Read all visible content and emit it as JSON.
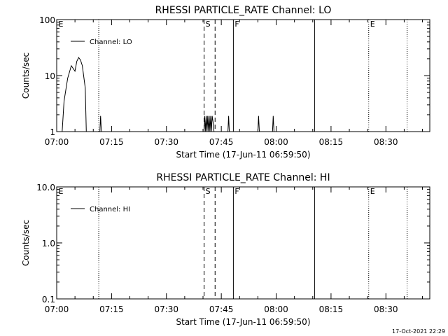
{
  "footer_timestamp": "17-Oct-2021 22:29",
  "chart_data": [
    {
      "type": "line",
      "title": "RHESSI PARTICLE_RATE Channel: LO",
      "xlabel": "Start Time (17-Jun-11 06:59:50)",
      "ylabel": "Counts/sec",
      "yscale": "log",
      "ylim": [
        1,
        100
      ],
      "ytick_values": [
        1,
        10,
        100
      ],
      "ytick_labels": [
        "1",
        "10",
        "100"
      ],
      "xlim_minutes": [
        0,
        102
      ],
      "xtick_minutes": [
        0,
        15,
        30,
        45,
        60,
        75,
        90
      ],
      "xtick_labels": [
        "07:00",
        "07:15",
        "07:30",
        "07:45",
        "08:00",
        "08:15",
        "08:30"
      ],
      "legend": {
        "label": "Channel: LO",
        "position": "top-left"
      },
      "series": [
        {
          "name": "Channel: LO",
          "x_minutes": [
            1.5,
            2.0,
            3.0,
            4.0,
            5.0,
            5.5,
            6.0,
            6.5,
            7.0,
            7.8,
            8.1,
            11.8,
            12.0,
            12.2,
            40.3,
            40.5,
            40.7,
            40.9,
            41.1,
            41.3,
            41.5,
            41.7,
            41.9,
            42.1,
            42.3,
            42.5,
            42.8,
            43.0,
            43.2,
            46.8,
            47.0,
            47.2,
            55.0,
            55.2,
            55.4,
            59.0,
            59.2,
            59.4
          ],
          "values": [
            1,
            3.5,
            9,
            15,
            12,
            18,
            21,
            19,
            15,
            6,
            1,
            1,
            1.9,
            1,
            1,
            1.9,
            1,
            1.9,
            1,
            1.9,
            1,
            1.9,
            1,
            1.9,
            1,
            1.9,
            1.4,
            1,
            1,
            1,
            1.9,
            1,
            1,
            1.9,
            1,
            1,
            1.9,
            1
          ]
        }
      ],
      "markers": [
        {
          "x_minutes": 0.1,
          "style": "none",
          "label": "E"
        },
        {
          "x_minutes": 11.5,
          "style": "dotted",
          "label": ""
        },
        {
          "x_minutes": 40.3,
          "style": "dashed",
          "label": "S"
        },
        {
          "x_minutes": 43.3,
          "style": "dashed",
          "label": ""
        },
        {
          "x_minutes": 48.3,
          "style": "solid",
          "label": "F"
        },
        {
          "x_minutes": 70.5,
          "style": "solid",
          "label": ""
        },
        {
          "x_minutes": 85.3,
          "style": "dotted",
          "label": "E"
        },
        {
          "x_minutes": 95.8,
          "style": "dotted",
          "label": ""
        }
      ]
    },
    {
      "type": "line",
      "title": "RHESSI PARTICLE_RATE Channel: HI",
      "xlabel": "Start Time (17-Jun-11 06:59:50)",
      "ylabel": "Counts/sec",
      "yscale": "log",
      "ylim": [
        0.1,
        10
      ],
      "ytick_values": [
        0.1,
        1,
        10
      ],
      "ytick_labels": [
        "0.1",
        "1.0",
        "10.0"
      ],
      "xlim_minutes": [
        0,
        102
      ],
      "xtick_minutes": [
        0,
        15,
        30,
        45,
        60,
        75,
        90
      ],
      "xtick_labels": [
        "07:00",
        "07:15",
        "07:30",
        "07:45",
        "08:00",
        "08:15",
        "08:30"
      ],
      "legend": {
        "label": "Channel: HI",
        "position": "top-left"
      },
      "series": [
        {
          "name": "Channel: HI",
          "x_minutes": [],
          "values": []
        }
      ],
      "markers": [
        {
          "x_minutes": 0.1,
          "style": "none",
          "label": "E"
        },
        {
          "x_minutes": 11.5,
          "style": "dotted",
          "label": ""
        },
        {
          "x_minutes": 40.3,
          "style": "dashed",
          "label": "S"
        },
        {
          "x_minutes": 43.3,
          "style": "dashed",
          "label": ""
        },
        {
          "x_minutes": 48.3,
          "style": "solid",
          "label": "F"
        },
        {
          "x_minutes": 70.5,
          "style": "solid",
          "label": ""
        },
        {
          "x_minutes": 85.3,
          "style": "dotted",
          "label": "E"
        },
        {
          "x_minutes": 95.8,
          "style": "dotted",
          "label": ""
        }
      ]
    }
  ]
}
